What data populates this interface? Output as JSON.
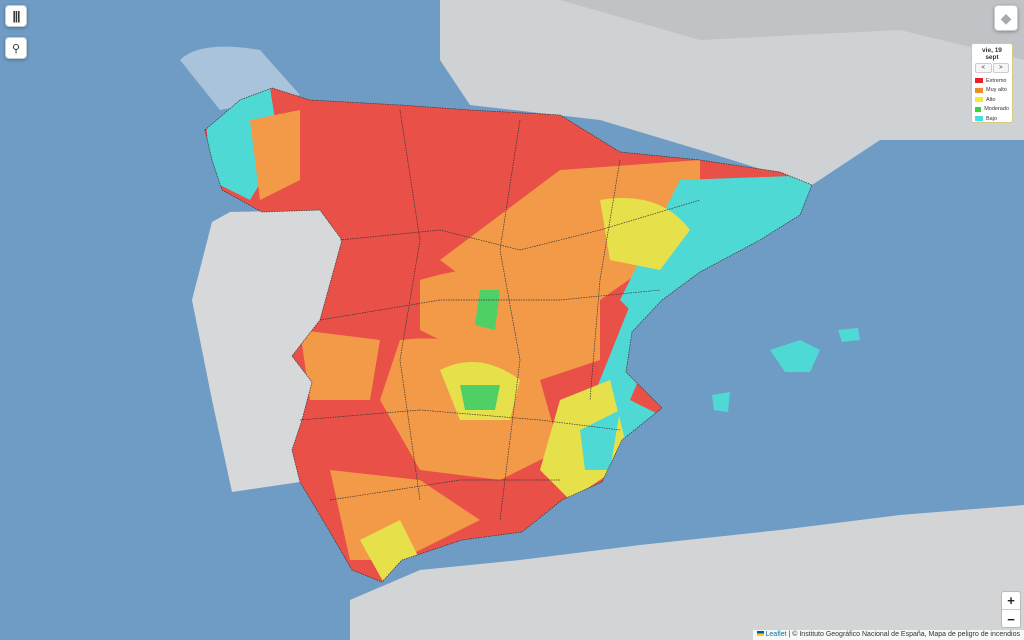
{
  "controls": {
    "menu_icon": "bars-icon",
    "search_icon": "search-icon",
    "layers_icon": "layers-icon",
    "zoom_in": "+",
    "zoom_out": "−"
  },
  "legend": {
    "date": "vie, 19 sept",
    "prev": "<",
    "next": ">",
    "items": [
      {
        "label": "Extremo",
        "color": "#e8202a"
      },
      {
        "label": "Muy alto",
        "color": "#f08c28"
      },
      {
        "label": "Alto",
        "color": "#f5ea2c"
      },
      {
        "label": "Moderado",
        "color": "#3ad43a"
      },
      {
        "label": "Bajo",
        "color": "#3ee0e6"
      }
    ]
  },
  "attribution": {
    "link": "Leaflet",
    "text": " | © Instituto Geográfico Nacional de España, Mapa de peligro de incendios"
  }
}
